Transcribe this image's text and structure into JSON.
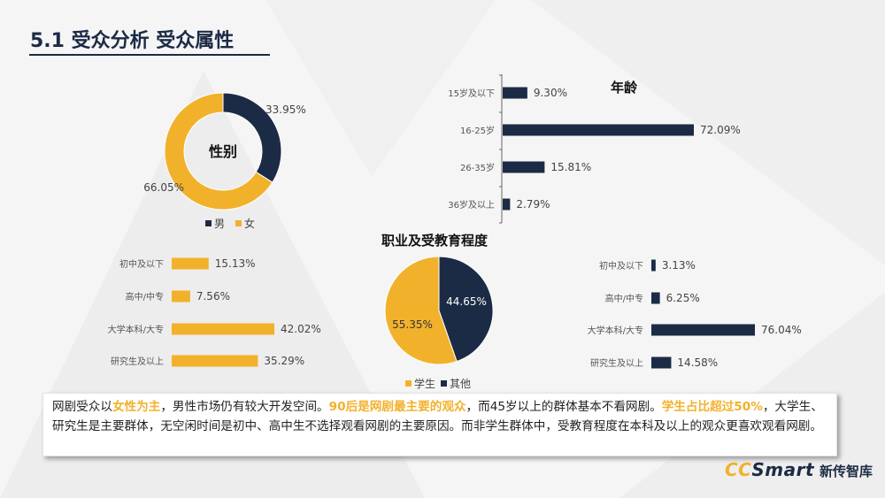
{
  "page_title": "5.1 受众分析  受众属性",
  "colors": {
    "navy": "#1c2b45",
    "gold": "#f2b12b"
  },
  "chart_data": [
    {
      "type": "pie",
      "variant": "donut",
      "title": "性别",
      "slices": [
        {
          "name": "男",
          "value": 33.95,
          "label": "33.95%"
        },
        {
          "name": "女",
          "value": 66.05,
          "label": "66.05%"
        }
      ],
      "legend": [
        "男",
        "女"
      ],
      "legend_position": "bottom"
    },
    {
      "type": "bar",
      "orientation": "horizontal",
      "title": "年龄",
      "categories": [
        "15岁及以下",
        "16-25岁",
        "26-35岁",
        "36岁及以上"
      ],
      "values": [
        9.3,
        72.09,
        15.81,
        2.79
      ],
      "labels": [
        "9.30%",
        "72.09%",
        "15.81%",
        "2.79%"
      ]
    },
    {
      "type": "bar",
      "orientation": "horizontal",
      "title": "",
      "group": "学生",
      "categories": [
        "初中及以下",
        "高中/中专",
        "大学本科/大专",
        "研究生及以上"
      ],
      "values": [
        15.13,
        7.56,
        42.02,
        35.29
      ],
      "labels": [
        "15.13%",
        "7.56%",
        "42.02%",
        "35.29%"
      ]
    },
    {
      "type": "pie",
      "title": "职业及受教育程度",
      "slices": [
        {
          "name": "学生",
          "value": 55.35,
          "label": "55.35%"
        },
        {
          "name": "其他",
          "value": 44.65,
          "label": "44.65%"
        }
      ],
      "legend": [
        "学生",
        "其他"
      ],
      "legend_position": "bottom"
    },
    {
      "type": "bar",
      "orientation": "horizontal",
      "title": "",
      "group": "其他",
      "categories": [
        "初中及以下",
        "高中/中专",
        "大学本科/大专",
        "研究生及以上"
      ],
      "values": [
        3.13,
        6.25,
        76.04,
        14.58
      ],
      "labels": [
        "3.13%",
        "6.25%",
        "76.04%",
        "14.58%"
      ]
    }
  ],
  "summary": [
    {
      "text": "网剧受众以",
      "hl": false
    },
    {
      "text": "女性为主",
      "hl": true
    },
    {
      "text": "，男性市场仍有较大开发空间。",
      "hl": false
    },
    {
      "text": "90后是网剧最主要的观众",
      "hl": true
    },
    {
      "text": "，而45岁以上的群体基本不看网剧。",
      "hl": false
    },
    {
      "text": "学生占比超过50%",
      "hl": true
    },
    {
      "text": "，大学生、研究生是主要群体，无空闲时间是初中、高中生不选择观看网剧的主要原因。而非学生群体中，受教育程度在本科及以上的观众更喜欢观看网剧。",
      "hl": false
    }
  ],
  "brand": {
    "en_part1": "CC",
    "en_part2": "Smart",
    "cn": "新传智库"
  }
}
